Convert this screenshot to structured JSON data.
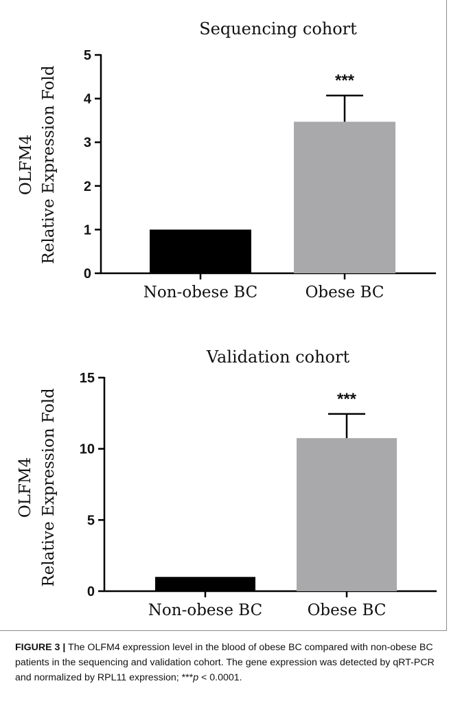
{
  "chart_data": [
    {
      "type": "bar",
      "title": "Sequencing cohort",
      "ylabel_lines": [
        "OLFM4",
        "Relative Expression Fold"
      ],
      "xlabel": "",
      "categories": [
        "Non-obese BC",
        "Obese BC"
      ],
      "values": [
        1.0,
        3.47
      ],
      "error_upper": [
        null,
        4.07
      ],
      "annotations": [
        "",
        "***"
      ],
      "ylim": [
        0,
        5
      ],
      "yticks": [
        0,
        1,
        2,
        3,
        4,
        5
      ],
      "colors": [
        "#000000",
        "#a9a9ab"
      ],
      "grid": false
    },
    {
      "type": "bar",
      "title": "Validation cohort",
      "ylabel_lines": [
        "OLFM4",
        "Relative Expression Fold"
      ],
      "xlabel": "",
      "categories": [
        "Non-obese BC",
        "Obese BC"
      ],
      "values": [
        1.0,
        10.75
      ],
      "error_upper": [
        null,
        12.45
      ],
      "annotations": [
        "",
        "***"
      ],
      "ylim": [
        0,
        15
      ],
      "yticks": [
        0,
        5,
        10,
        15
      ],
      "colors": [
        "#000000",
        "#a9a9ab"
      ],
      "grid": false
    }
  ],
  "caption": {
    "label": "FIGURE 3 |",
    "text": " The OLFM4 expression level in the blood of obese BC compared with non-obese BC patients in the sequencing and validation cohort. The gene expression was detected by qRT-PCR and normalized by RPL11 expression; ",
    "pvalue_stars": "***",
    "pvalue_var": "p",
    "pvalue_rest": " < 0.0001."
  }
}
